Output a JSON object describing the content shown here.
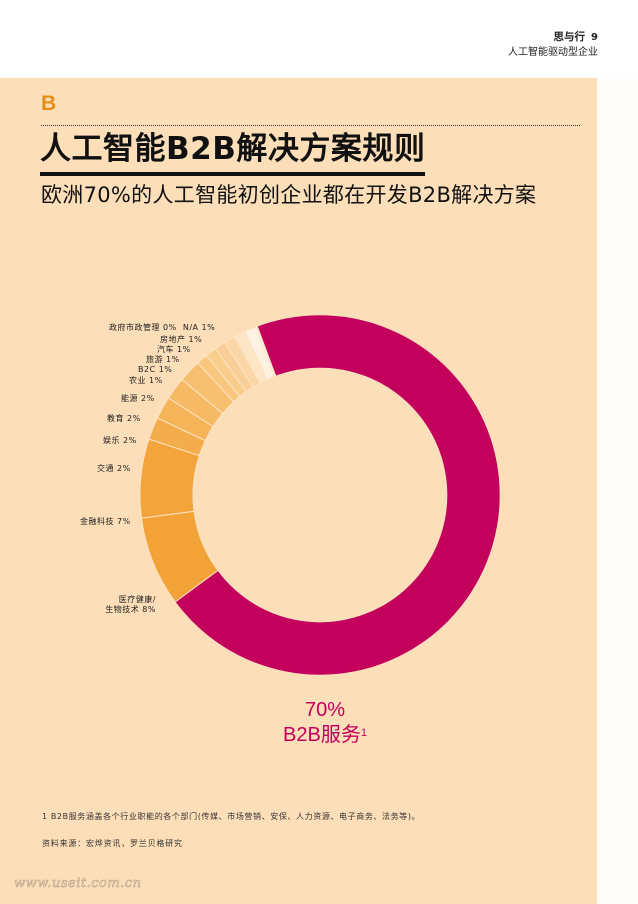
{
  "header": {
    "section": "思与行",
    "page_number": "9",
    "subtitle": "人工智能驱动型企业"
  },
  "section_letter": "B",
  "title": "人工智能B2B解决方案规则",
  "subtitle": "欧洲70%的人工智能初创企业都在开发B2B解决方案",
  "highlight": {
    "percent": "70%",
    "label": "B2B服务",
    "footnote_marker": "1"
  },
  "labels": {
    "gov": "政府市政管理 0%",
    "na": "N/A  1%",
    "realestate": "房地产  1%",
    "auto": "汽车  1%",
    "travel": "旅游  1%",
    "b2c": "B2C  1%",
    "agri": "农业  1%",
    "energy": "能源 2%",
    "edu": "教育  2%",
    "ent": "娱乐 2%",
    "transport": "交通 2%",
    "fintech": "金融科技 7%",
    "health_line1": "医疗健康/",
    "health_line2": "生物技术 8%"
  },
  "footnote": "1  B2B服务涵盖各个行业职能的各个部门(传媒、市场营销、安保、人力资源、电子商务、法务等)。",
  "source": "资料来源：宏烨资讯，罗兰贝格研究",
  "watermark": "www.useit.com.cn",
  "colors": {
    "background": "#fcdeb8",
    "accent_magenta": "#c4005d",
    "accent_orange": "#e38d1a"
  },
  "chart_data": {
    "type": "pie",
    "variant": "donut",
    "title": "人工智能B2B解决方案规则",
    "subtitle": "欧洲70%的人工智能初创企业都在开发B2B解决方案",
    "categories": [
      "B2B服务",
      "医疗健康/生物技术",
      "金融科技",
      "交通",
      "娱乐",
      "教育",
      "能源",
      "农业",
      "B2C",
      "旅游",
      "汽车",
      "房地产",
      "N/A",
      "政府市政管理"
    ],
    "values": [
      70,
      8,
      7,
      2,
      2,
      2,
      2,
      1,
      1,
      1,
      1,
      1,
      1,
      0
    ],
    "unit": "%",
    "colors": [
      "#c4005d",
      "#f2a236",
      "#f3a53c",
      "#f4ad4c",
      "#f5b458",
      "#f6ba64",
      "#f7c070",
      "#f8c77d",
      "#f9cd8a",
      "#face98",
      "#fbd7a8",
      "#fde6c6",
      "#fef3e2",
      "#fef8ee"
    ],
    "annotation": "70% B2B服务¹",
    "legend_position": "labels-left-of-ring"
  }
}
